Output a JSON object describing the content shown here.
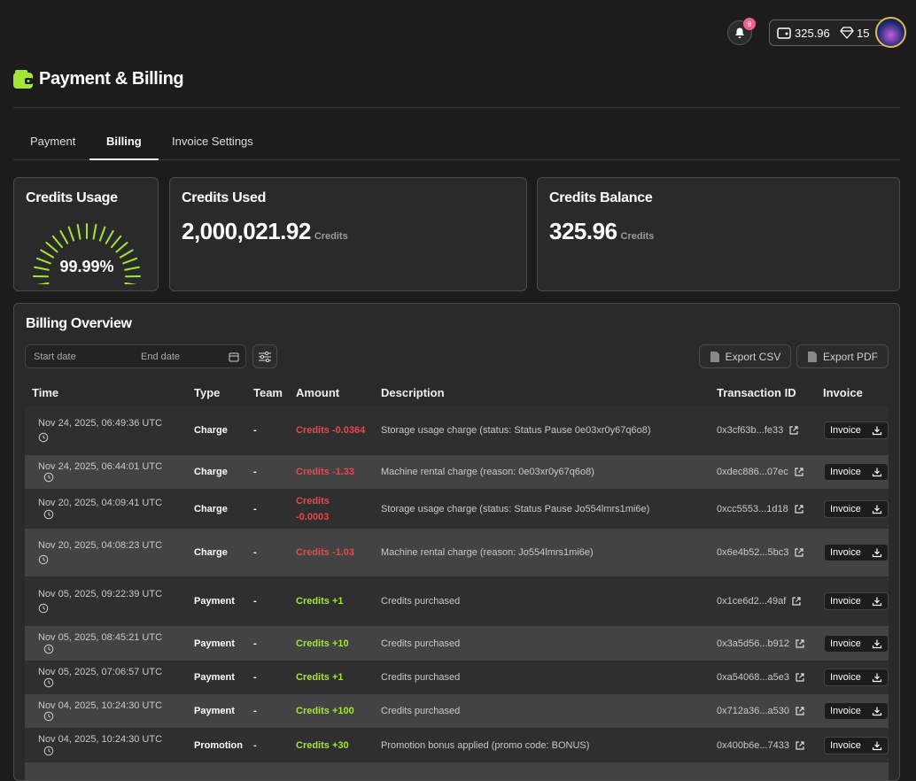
{
  "header": {
    "notification_count": "8",
    "balance": "325.96",
    "gems": "15"
  },
  "page": {
    "title": "Payment & Billing"
  },
  "tabs": {
    "items": [
      "Payment",
      "Billing",
      "Invoice Settings"
    ],
    "active": 1
  },
  "cards": {
    "usage": {
      "title": "Credits Usage",
      "value": "99.99%"
    },
    "used": {
      "title": "Credits Used",
      "value": "2,000,021.92",
      "unit": "Credits"
    },
    "balance": {
      "title": "Credits Balance",
      "value": "325.96",
      "unit": "Credits"
    }
  },
  "overview": {
    "title": "Billing Overview",
    "start_date": "Start date",
    "end_date": "End date",
    "export_csv": "Export CSV",
    "export_pdf": "Export PDF",
    "columns": [
      "Time",
      "Type",
      "Team",
      "Amount",
      "Description",
      "Transaction ID",
      "Invoice"
    ],
    "rows": [
      {
        "time": "Nov 24, 2025, 06:49:36 UTC",
        "type": "Charge",
        "team": "-",
        "amount": "Credits -0.0364",
        "amount_color": "#e5484d",
        "description": "Storage usage charge (status: Status Pause 0e03xr0y67q6o8)",
        "transaction_id": "0x3cf63b...fe33",
        "invoice": "Invoice"
      },
      {
        "time": "Nov 24, 2025, 06:44:01 UTC",
        "type": "Charge",
        "team": "-",
        "amount": "Credits -1.33",
        "amount_color": "#e5484d",
        "description": "Machine rental charge (reason: 0e03xr0y67q6o8)",
        "transaction_id": "0xdec886...07ec",
        "invoice": "Invoice"
      },
      {
        "time": "Nov 20, 2025, 04:09:41 UTC",
        "type": "Charge",
        "team": "-",
        "amount": "Credits -0.0003",
        "amount_color": "#e5484d",
        "description": "Storage usage charge (status: Status Pause Jo554lmrs1mi6e)",
        "transaction_id": "0xcc5553...1d18",
        "invoice": "Invoice"
      },
      {
        "time": "Nov 20, 2025, 04:08:23 UTC",
        "type": "Charge",
        "team": "-",
        "amount": "Credits -1.03",
        "amount_color": "#e5484d",
        "description": "Machine rental charge (reason: Jo554lmrs1mi6e)",
        "transaction_id": "0x6e4b52...5bc3",
        "invoice": "Invoice"
      },
      {
        "time": "Nov 05, 2025, 09:22:39 UTC",
        "type": "Payment",
        "team": "-",
        "amount": "Credits +1",
        "amount_color": "#a3e635",
        "description": "Credits purchased",
        "transaction_id": "0x1ce6d2...49af",
        "invoice": "Invoice"
      },
      {
        "time": "Nov 05, 2025, 08:45:21 UTC",
        "type": "Payment",
        "team": "-",
        "amount": "Credits +10",
        "amount_color": "#a3e635",
        "description": "Credits purchased",
        "transaction_id": "0x3a5d56...b912",
        "invoice": "Invoice"
      },
      {
        "time": "Nov 05, 2025, 07:06:57 UTC",
        "type": "Payment",
        "team": "-",
        "amount": "Credits +1",
        "amount_color": "#a3e635",
        "description": "Credits purchased",
        "transaction_id": "0xa54068...a5e3",
        "invoice": "Invoice"
      },
      {
        "time": "Nov 04, 2025, 10:24:30 UTC",
        "type": "Payment",
        "team": "-",
        "amount": "Credits +100",
        "amount_color": "#a3e635",
        "description": "Credits purchased",
        "transaction_id": "0x712a36...a530",
        "invoice": "Invoice"
      },
      {
        "time": "Nov 04, 2025, 10:24:30 UTC",
        "type": "Promotion",
        "team": "-",
        "amount": "Credits +30",
        "amount_color": "#a3e635",
        "description": "Promotion bonus applied (promo code: BONUS)",
        "transaction_id": "0x400b6e...7433",
        "invoice": "Invoice"
      }
    ]
  }
}
